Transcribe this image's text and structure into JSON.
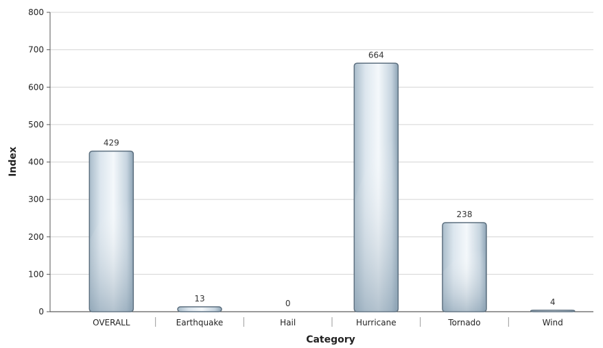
{
  "chart_data": {
    "type": "bar",
    "categories": [
      "OVERALL",
      "Earthquake",
      "Hail",
      "Hurricane",
      "Tornado",
      "Wind"
    ],
    "values": [
      429,
      13,
      0,
      664,
      238,
      4
    ],
    "xlabel": "Category",
    "ylabel": "Index",
    "ylim": [
      0,
      800
    ],
    "yticks": [
      0,
      100,
      200,
      300,
      400,
      500,
      600,
      700,
      800
    ],
    "grid": true,
    "data_labels": true,
    "bar_color": "#b5c6d3",
    "bar_edge_color": "#5c6f7f"
  }
}
